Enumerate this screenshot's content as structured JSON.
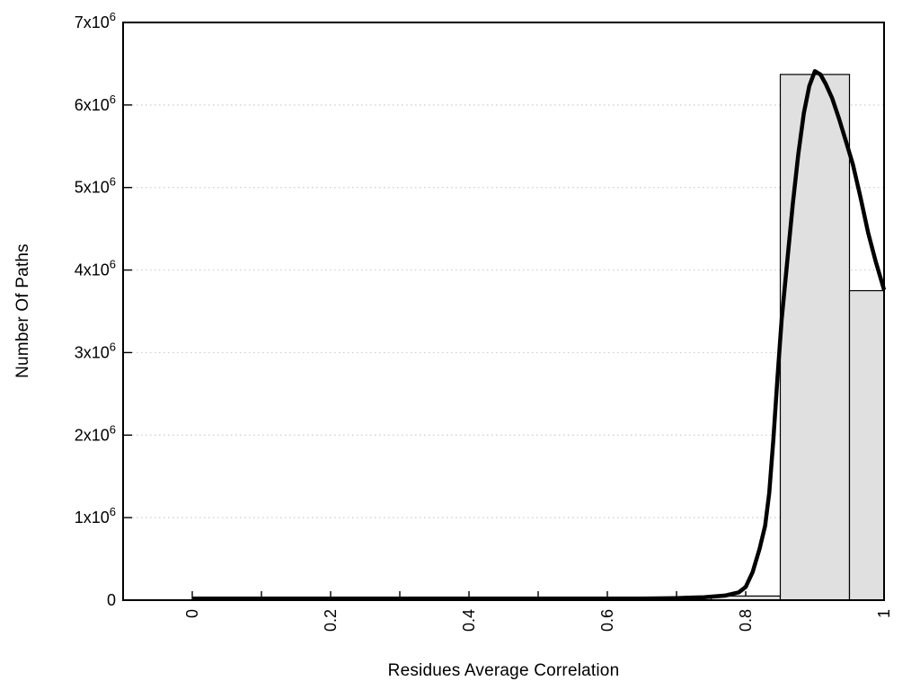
{
  "chart_data": {
    "type": "bar",
    "subtype": "histogram-with-fitted-curve",
    "xlabel": "Residues Average Correlation",
    "ylabel": "Number Of Paths",
    "xlim": [
      -0.1,
      1.0
    ],
    "ylim": [
      0,
      7000000
    ],
    "grid": "horizontal-dotted",
    "grid_color": "#cccccc",
    "bar_fill": "#e0e0e0",
    "bar_stroke": "#000000",
    "curve_color": "#000000",
    "bars": [
      {
        "x_start": 0.75,
        "x_end": 0.85,
        "value": 50000
      },
      {
        "x_start": 0.85,
        "x_end": 0.95,
        "value": 6370000
      },
      {
        "x_start": 0.95,
        "x_end": 1.05,
        "value": 3750000
      }
    ],
    "curve": {
      "name": "fitted-distribution",
      "points": [
        [
          0.0,
          20000
        ],
        [
          0.05,
          20000
        ],
        [
          0.1,
          20000
        ],
        [
          0.15,
          20000
        ],
        [
          0.2,
          20000
        ],
        [
          0.25,
          20000
        ],
        [
          0.3,
          20000
        ],
        [
          0.35,
          20000
        ],
        [
          0.4,
          20000
        ],
        [
          0.45,
          20000
        ],
        [
          0.5,
          20000
        ],
        [
          0.55,
          20000
        ],
        [
          0.6,
          20000
        ],
        [
          0.65,
          20000
        ],
        [
          0.7,
          25000
        ],
        [
          0.74,
          35000
        ],
        [
          0.77,
          55000
        ],
        [
          0.79,
          95000
        ],
        [
          0.8,
          160000
        ],
        [
          0.81,
          340000
        ],
        [
          0.82,
          620000
        ],
        [
          0.828,
          900000
        ],
        [
          0.834,
          1300000
        ],
        [
          0.84,
          1950000
        ],
        [
          0.846,
          2700000
        ],
        [
          0.852,
          3400000
        ],
        [
          0.86,
          4100000
        ],
        [
          0.868,
          4800000
        ],
        [
          0.876,
          5400000
        ],
        [
          0.884,
          5900000
        ],
        [
          0.892,
          6230000
        ],
        [
          0.9,
          6410000
        ],
        [
          0.908,
          6370000
        ],
        [
          0.916,
          6250000
        ],
        [
          0.925,
          6080000
        ],
        [
          0.935,
          5830000
        ],
        [
          0.945,
          5560000
        ],
        [
          0.955,
          5280000
        ],
        [
          0.966,
          4880000
        ],
        [
          0.977,
          4450000
        ],
        [
          0.988,
          4100000
        ],
        [
          1.0,
          3760000
        ]
      ]
    },
    "xticks": [
      {
        "v": 0.0,
        "label": "0"
      },
      {
        "v": 0.1,
        "label": ""
      },
      {
        "v": 0.2,
        "label": "0.2"
      },
      {
        "v": 0.3,
        "label": ""
      },
      {
        "v": 0.4,
        "label": "0.4"
      },
      {
        "v": 0.5,
        "label": ""
      },
      {
        "v": 0.6,
        "label": "0.6"
      },
      {
        "v": 0.7,
        "label": ""
      },
      {
        "v": 0.8,
        "label": "0.8"
      },
      {
        "v": 0.9,
        "label": ""
      },
      {
        "v": 1.0,
        "label": "1"
      }
    ],
    "yticks": [
      {
        "v": 0,
        "label": "0"
      },
      {
        "v": 1000000,
        "label": "1x10^6"
      },
      {
        "v": 2000000,
        "label": "2x10^6"
      },
      {
        "v": 3000000,
        "label": "3x10^6"
      },
      {
        "v": 4000000,
        "label": "4x10^6"
      },
      {
        "v": 5000000,
        "label": "5x10^6"
      },
      {
        "v": 6000000,
        "label": "6x10^6"
      },
      {
        "v": 7000000,
        "label": "7x10^6"
      }
    ],
    "legend": "none"
  }
}
